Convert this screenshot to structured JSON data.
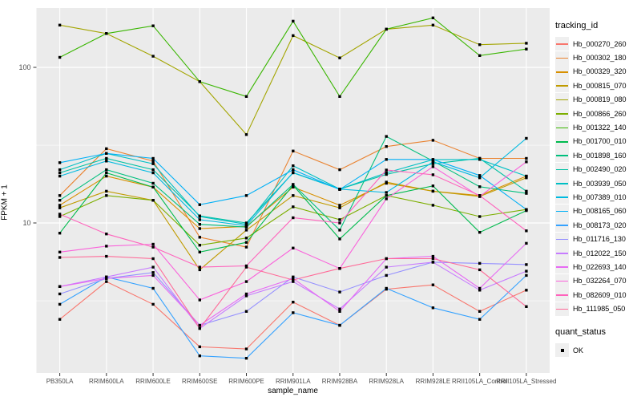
{
  "figure": {
    "y_axis_label": "FPKM + 1",
    "x_axis_label": "sample_name",
    "legend_title": "tracking_id",
    "legend2_title": "quant_status",
    "legend2_item": "OK",
    "colors": {
      "panel_bg": "#ebebeb",
      "grid": "#ffffff",
      "marker": "#000000",
      "tick_text": "#4d4d4d",
      "tick_mark": "#333333"
    }
  },
  "chart_data": {
    "type": "line",
    "title": "",
    "xlabel": "sample_name",
    "ylabel": "FPKM + 1",
    "y_scale": "log10",
    "ylim": [
      1.2,
      245
    ],
    "grid": "on",
    "legend_position": "right",
    "marker": "black-square-point",
    "quant_status": "OK",
    "y_ticks": [
      {
        "label": "100",
        "value": 100
      },
      {
        "label": "10",
        "value": 10
      }
    ],
    "y_minor_gridlines": [
      31.6,
      3.16
    ],
    "categories": [
      "PB350LA",
      "RRIM600LA",
      "RRIM600LE",
      "RRIM600SE",
      "RRIM600PE",
      "RRIM901LA",
      "RRIM928BA",
      "RRIM928LA",
      "RRIM928LE",
      "RRII105LA_Control",
      "RRII105LA_Stressed"
    ],
    "series": [
      {
        "name": "Hb_000270_260",
        "color": "#F8766D",
        "values": [
          2.4,
          4.2,
          3.0,
          1.6,
          1.55,
          3.1,
          2.2,
          3.75,
          4.0,
          2.7,
          3.7
        ]
      },
      {
        "name": "Hb_000302_180",
        "color": "#EA8331",
        "values": [
          15,
          30,
          25,
          8.1,
          7.0,
          29,
          22,
          31,
          34,
          26,
          26
        ]
      },
      {
        "name": "Hb_000329_320",
        "color": "#D89000",
        "values": [
          13,
          20,
          17,
          9.2,
          9.5,
          17,
          13,
          18,
          16,
          15,
          20
        ]
      },
      {
        "name": "Hb_000815_070",
        "color": "#C09B00",
        "values": [
          12.5,
          16,
          14,
          5.0,
          9.0,
          15,
          12.5,
          18.3,
          16,
          14.8,
          19.5
        ]
      },
      {
        "name": "Hb_000819_080",
        "color": "#A3A500",
        "values": [
          187,
          165,
          118,
          81,
          37,
          160,
          115,
          176,
          187,
          140,
          143
        ]
      },
      {
        "name": "Hb_000866_260",
        "color": "#7CAE00",
        "values": [
          11,
          15,
          14,
          7.2,
          8.0,
          12.7,
          10.5,
          15,
          13,
          11,
          12.2
        ]
      },
      {
        "name": "Hb_001322_140",
        "color": "#39B600",
        "values": [
          116,
          165,
          185,
          81,
          65,
          198,
          65,
          176,
          208,
          119,
          131
        ]
      },
      {
        "name": "Hb_001700_010",
        "color": "#00BB4E",
        "values": [
          8.6,
          21,
          17,
          6.5,
          7.5,
          17.5,
          7.9,
          15,
          17.3,
          8.7,
          12
        ]
      },
      {
        "name": "Hb_001898_160",
        "color": "#00BF7D",
        "values": [
          14,
          22,
          18,
          9.8,
          9.4,
          17.7,
          9.0,
          36,
          25,
          17.1,
          15.5
        ]
      },
      {
        "name": "Hb_002490_020",
        "color": "#00C1A3",
        "values": [
          21,
          26,
          22,
          11.1,
          10,
          21,
          16.5,
          20.5,
          24,
          26,
          16
        ]
      },
      {
        "name": "Hb_003939_050",
        "color": "#00BFC4",
        "values": [
          22,
          28,
          24,
          11,
          9.8,
          23.3,
          16.5,
          21,
          25.5,
          25.6,
          20
        ]
      },
      {
        "name": "Hb_007389_010",
        "color": "#00BAE0",
        "values": [
          20,
          25,
          21,
          10.5,
          9.6,
          21.1,
          16.5,
          15.7,
          24.7,
          19.5,
          35
        ]
      },
      {
        "name": "Hb_008165_060",
        "color": "#00B0F6",
        "values": [
          24.4,
          28,
          26,
          13.1,
          15.0,
          22,
          16.4,
          25.6,
          25.6,
          20.2,
          12.2
        ]
      },
      {
        "name": "Hb_008173_020",
        "color": "#35A2FF",
        "values": [
          3.0,
          4.5,
          3.8,
          1.4,
          1.35,
          2.65,
          2.2,
          3.8,
          2.85,
          2.4,
          4.6
        ]
      },
      {
        "name": "Hb_011716_130",
        "color": "#9590FF",
        "values": [
          3.5,
          4.4,
          4.8,
          2.2,
          2.7,
          4.5,
          3.6,
          4.6,
          5.6,
          5.5,
          5.4
        ]
      },
      {
        "name": "Hb_012022_150",
        "color": "#C77CFF",
        "values": [
          3.9,
          4.5,
          5.2,
          2.1,
          3.4,
          4.2,
          2.8,
          5.2,
          5.6,
          3.7,
          4.9
        ]
      },
      {
        "name": "Hb_022693_140",
        "color": "#E76BF3",
        "values": [
          3.9,
          4.4,
          4.6,
          2.2,
          3.5,
          4.4,
          2.7,
          5.9,
          6.1,
          3.8,
          7.4
        ]
      },
      {
        "name": "Hb_032264_070",
        "color": "#FA62DB",
        "values": [
          6.5,
          7.1,
          7.3,
          3.2,
          4.2,
          6.9,
          5.1,
          14.3,
          23,
          14.8,
          24.7
        ]
      },
      {
        "name": "Hb_082609_010",
        "color": "#FF62BC",
        "values": [
          11.4,
          8.5,
          7.0,
          5.2,
          5.3,
          10.8,
          10.0,
          21.9,
          20.4,
          15.0,
          8.9
        ]
      },
      {
        "name": "Hb_111985_050",
        "color": "#FF6A98",
        "values": [
          6.0,
          6.1,
          5.9,
          2.1,
          5.2,
          4.3,
          5.1,
          5.9,
          5.9,
          5.0,
          2.9
        ]
      }
    ]
  }
}
